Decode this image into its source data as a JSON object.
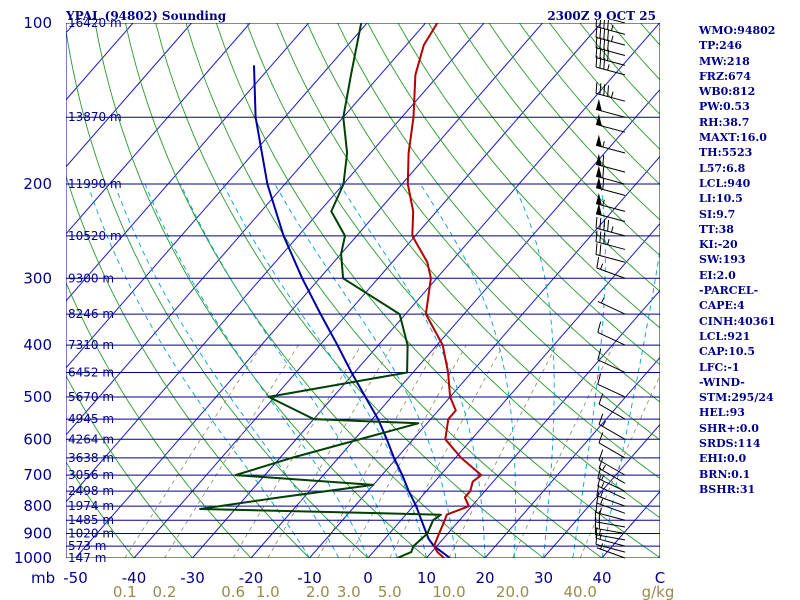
{
  "header": {
    "station": "YPAL (94802) Sounding",
    "time": "2300Z  9 OCT 25"
  },
  "chart_data": {
    "type": "skew-t log-p",
    "title": "YPAL (94802) Sounding",
    "subtitle": "2300Z  9 OCT 25",
    "y_axis": {
      "unit": "mb",
      "scale": "log",
      "range": [
        1000,
        100
      ],
      "ticks": [
        100,
        200,
        300,
        400,
        500,
        600,
        700,
        800,
        900,
        1000
      ]
    },
    "x_axis": {
      "unit": "C",
      "ticks": [
        -50,
        -40,
        -30,
        -20,
        -10,
        0,
        10,
        20,
        30,
        40
      ],
      "tick_labels": [
        "-50",
        "-40",
        "-30",
        "-20",
        "-10",
        "0",
        "10",
        "20",
        "30",
        "40"
      ]
    },
    "height_levels": [
      {
        "p": 100,
        "label": "16420 m"
      },
      {
        "p": 150,
        "label": "13870 m"
      },
      {
        "p": 200,
        "label": "11990 m"
      },
      {
        "p": 250,
        "label": "10520 m"
      },
      {
        "p": 300,
        "label": "9300 m"
      },
      {
        "p": 350,
        "label": "8246 m"
      },
      {
        "p": 400,
        "label": "7310 m"
      },
      {
        "p": 450,
        "label": "6452 m"
      },
      {
        "p": 500,
        "label": "5670 m"
      },
      {
        "p": 550,
        "label": "4945 m"
      },
      {
        "p": 600,
        "label": "4264 m"
      },
      {
        "p": 650,
        "label": "3638 m"
      },
      {
        "p": 700,
        "label": "3056 m"
      },
      {
        "p": 750,
        "label": "2498 m"
      },
      {
        "p": 800,
        "label": "1974 m"
      },
      {
        "p": 850,
        "label": "1485 m"
      },
      {
        "p": 900,
        "label": "1020 m"
      },
      {
        "p": 950,
        "label": "573 m"
      },
      {
        "p": 1000,
        "label": "147 m"
      }
    ],
    "mixing_ratio_labels": [
      "0.1",
      "0.2",
      "0.6",
      "1.0",
      "2.0",
      "3.0",
      "5.0",
      "10.0",
      "20.0",
      "40.0",
      "g/kg"
    ],
    "mixing_ratio_values": [
      0.1,
      0.2,
      0.6,
      1.0,
      2.0,
      3.0,
      5.0,
      10.0,
      20.0,
      40.0
    ],
    "temperature_profile": [
      {
        "p": 1000,
        "t": 13.0
      },
      {
        "p": 975,
        "t": 11.0
      },
      {
        "p": 950,
        "t": 9.5
      },
      {
        "p": 925,
        "t": 9.0
      },
      {
        "p": 900,
        "t": 8.5
      },
      {
        "p": 850,
        "t": 7.5
      },
      {
        "p": 830,
        "t": 7.0
      },
      {
        "p": 800,
        "t": 9.5
      },
      {
        "p": 770,
        "t": 7.5
      },
      {
        "p": 750,
        "t": 7.5
      },
      {
        "p": 720,
        "t": 6.5
      },
      {
        "p": 700,
        "t": 7.0
      },
      {
        "p": 650,
        "t": 1.0
      },
      {
        "p": 600,
        "t": -4.5
      },
      {
        "p": 550,
        "t": -7.0
      },
      {
        "p": 530,
        "t": -7.0
      },
      {
        "p": 500,
        "t": -10.0
      },
      {
        "p": 450,
        "t": -14.0
      },
      {
        "p": 400,
        "t": -19.0
      },
      {
        "p": 350,
        "t": -26.5
      },
      {
        "p": 300,
        "t": -31.0
      },
      {
        "p": 280,
        "t": -34.0
      },
      {
        "p": 250,
        "t": -40.5
      },
      {
        "p": 225,
        "t": -44.0
      },
      {
        "p": 200,
        "t": -49.0
      },
      {
        "p": 175,
        "t": -53.5
      },
      {
        "p": 150,
        "t": -58.0
      },
      {
        "p": 125,
        "t": -64.0
      },
      {
        "p": 110,
        "t": -67.0
      },
      {
        "p": 100,
        "t": -68.0
      }
    ],
    "dewpoint_profile": [
      {
        "p": 1000,
        "t": 5.0
      },
      {
        "p": 975,
        "t": 6.5
      },
      {
        "p": 950,
        "t": 6.0
      },
      {
        "p": 900,
        "t": 6.5
      },
      {
        "p": 850,
        "t": 5.5
      },
      {
        "p": 830,
        "t": 6.0
      },
      {
        "p": 810,
        "t": -36.0
      },
      {
        "p": 770,
        "t": -24.0
      },
      {
        "p": 730,
        "t": -10.0
      },
      {
        "p": 700,
        "t": -35.0
      },
      {
        "p": 650,
        "t": -28.0
      },
      {
        "p": 560,
        "t": -11.5
      },
      {
        "p": 550,
        "t": -30.0
      },
      {
        "p": 500,
        "t": -41.0
      },
      {
        "p": 450,
        "t": -21.0
      },
      {
        "p": 400,
        "t": -25.0
      },
      {
        "p": 350,
        "t": -31.0
      },
      {
        "p": 300,
        "t": -46.0
      },
      {
        "p": 270,
        "t": -50.0
      },
      {
        "p": 250,
        "t": -52.0
      },
      {
        "p": 225,
        "t": -58.0
      },
      {
        "p": 200,
        "t": -60.0
      },
      {
        "p": 175,
        "t": -64.0
      },
      {
        "p": 150,
        "t": -70.0
      },
      {
        "p": 125,
        "t": -75.0
      },
      {
        "p": 100,
        "t": -81.0
      }
    ],
    "parcel_profile": [
      {
        "p": 1000,
        "t": 14.0
      },
      {
        "p": 950,
        "t": 9.5
      },
      {
        "p": 921,
        "t": 7.5
      },
      {
        "p": 850,
        "t": 3.5
      },
      {
        "p": 800,
        "t": 0.5
      },
      {
        "p": 750,
        "t": -3.0
      },
      {
        "p": 700,
        "t": -6.5
      },
      {
        "p": 650,
        "t": -10.5
      },
      {
        "p": 600,
        "t": -14.5
      },
      {
        "p": 550,
        "t": -19.0
      },
      {
        "p": 500,
        "t": -24.5
      },
      {
        "p": 450,
        "t": -30.5
      },
      {
        "p": 400,
        "t": -37.0
      },
      {
        "p": 350,
        "t": -44.5
      },
      {
        "p": 300,
        "t": -53.0
      },
      {
        "p": 250,
        "t": -62.5
      },
      {
        "p": 200,
        "t": -73.0
      },
      {
        "p": 150,
        "t": -85.0
      },
      {
        "p": 120,
        "t": -93.0
      }
    ],
    "wind_barbs": [
      {
        "p": 1000,
        "dir": 290,
        "spd": 5
      },
      {
        "p": 975,
        "dir": 285,
        "spd": 10
      },
      {
        "p": 950,
        "dir": 285,
        "spd": 15
      },
      {
        "p": 925,
        "dir": 280,
        "spd": 15
      },
      {
        "p": 900,
        "dir": 280,
        "spd": 20
      },
      {
        "p": 875,
        "dir": 280,
        "spd": 20
      },
      {
        "p": 850,
        "dir": 285,
        "spd": 15
      },
      {
        "p": 825,
        "dir": 290,
        "spd": 15
      },
      {
        "p": 800,
        "dir": 290,
        "spd": 15
      },
      {
        "p": 775,
        "dir": 295,
        "spd": 15
      },
      {
        "p": 750,
        "dir": 295,
        "spd": 15
      },
      {
        "p": 725,
        "dir": 300,
        "spd": 15
      },
      {
        "p": 700,
        "dir": 300,
        "spd": 10
      },
      {
        "p": 650,
        "dir": 300,
        "spd": 10
      },
      {
        "p": 600,
        "dir": 300,
        "spd": 15
      },
      {
        "p": 550,
        "dir": 300,
        "spd": 10
      },
      {
        "p": 500,
        "dir": 295,
        "spd": 10
      },
      {
        "p": 450,
        "dir": 295,
        "spd": 10
      },
      {
        "p": 400,
        "dir": 295,
        "spd": 10
      },
      {
        "p": 350,
        "dir": 295,
        "spd": 5
      },
      {
        "p": 300,
        "dir": 290,
        "spd": 15
      },
      {
        "p": 280,
        "dir": 285,
        "spd": 20
      },
      {
        "p": 265,
        "dir": 285,
        "spd": 35
      },
      {
        "p": 250,
        "dir": 285,
        "spd": 45
      },
      {
        "p": 235,
        "dir": 285,
        "spd": 50
      },
      {
        "p": 225,
        "dir": 285,
        "spd": 55
      },
      {
        "p": 210,
        "dir": 285,
        "spd": 60
      },
      {
        "p": 200,
        "dir": 285,
        "spd": 60
      },
      {
        "p": 190,
        "dir": 285,
        "spd": 60
      },
      {
        "p": 175,
        "dir": 285,
        "spd": 55
      },
      {
        "p": 160,
        "dir": 285,
        "spd": 50
      },
      {
        "p": 150,
        "dir": 285,
        "spd": 50
      },
      {
        "p": 140,
        "dir": 285,
        "spd": 45
      },
      {
        "p": 125,
        "dir": 285,
        "spd": 35
      },
      {
        "p": 120,
        "dir": 285,
        "spd": 40
      },
      {
        "p": 115,
        "dir": 285,
        "spd": 40
      },
      {
        "p": 110,
        "dir": 285,
        "spd": 45
      },
      {
        "p": 105,
        "dir": 285,
        "spd": 45
      },
      {
        "p": 100,
        "dir": 285,
        "spd": 40
      }
    ],
    "colors": {
      "background": "#ffffff",
      "isobar": "#00008b",
      "isotherm": "#1a1acd",
      "dry_adiabat": "#2a9a2a",
      "moist_adiabat": "#00a0d0",
      "mixing_ratio": "#8a8a5a",
      "temperature": "#b40000",
      "dewpoint": "#004000",
      "parcel": "#0000a0",
      "barb": "#000000"
    }
  },
  "indices": [
    "WMO:94802",
    "TP:246",
    "MW:218",
    "FRZ:674",
    "WB0:812",
    "PW:0.53",
    "RH:38.7",
    "MAXT:16.0",
    "TH:5523",
    "L57:6.8",
    "LCL:940",
    "LI:10.5",
    "SI:9.7",
    "TT:38",
    "KI:-20",
    "SW:193",
    "EI:2.0",
    "-PARCEL-",
    "CAPE:4",
    "CINH:40361",
    "LCL:921",
    "CAP:10.5",
    "LFC:-1",
    "-WIND-",
    "STM:295/24",
    "HEL:93",
    "SHR+:0.0",
    "SRDS:114",
    "EHI:0.0",
    "BRN:0.1",
    "BSHR:31"
  ]
}
